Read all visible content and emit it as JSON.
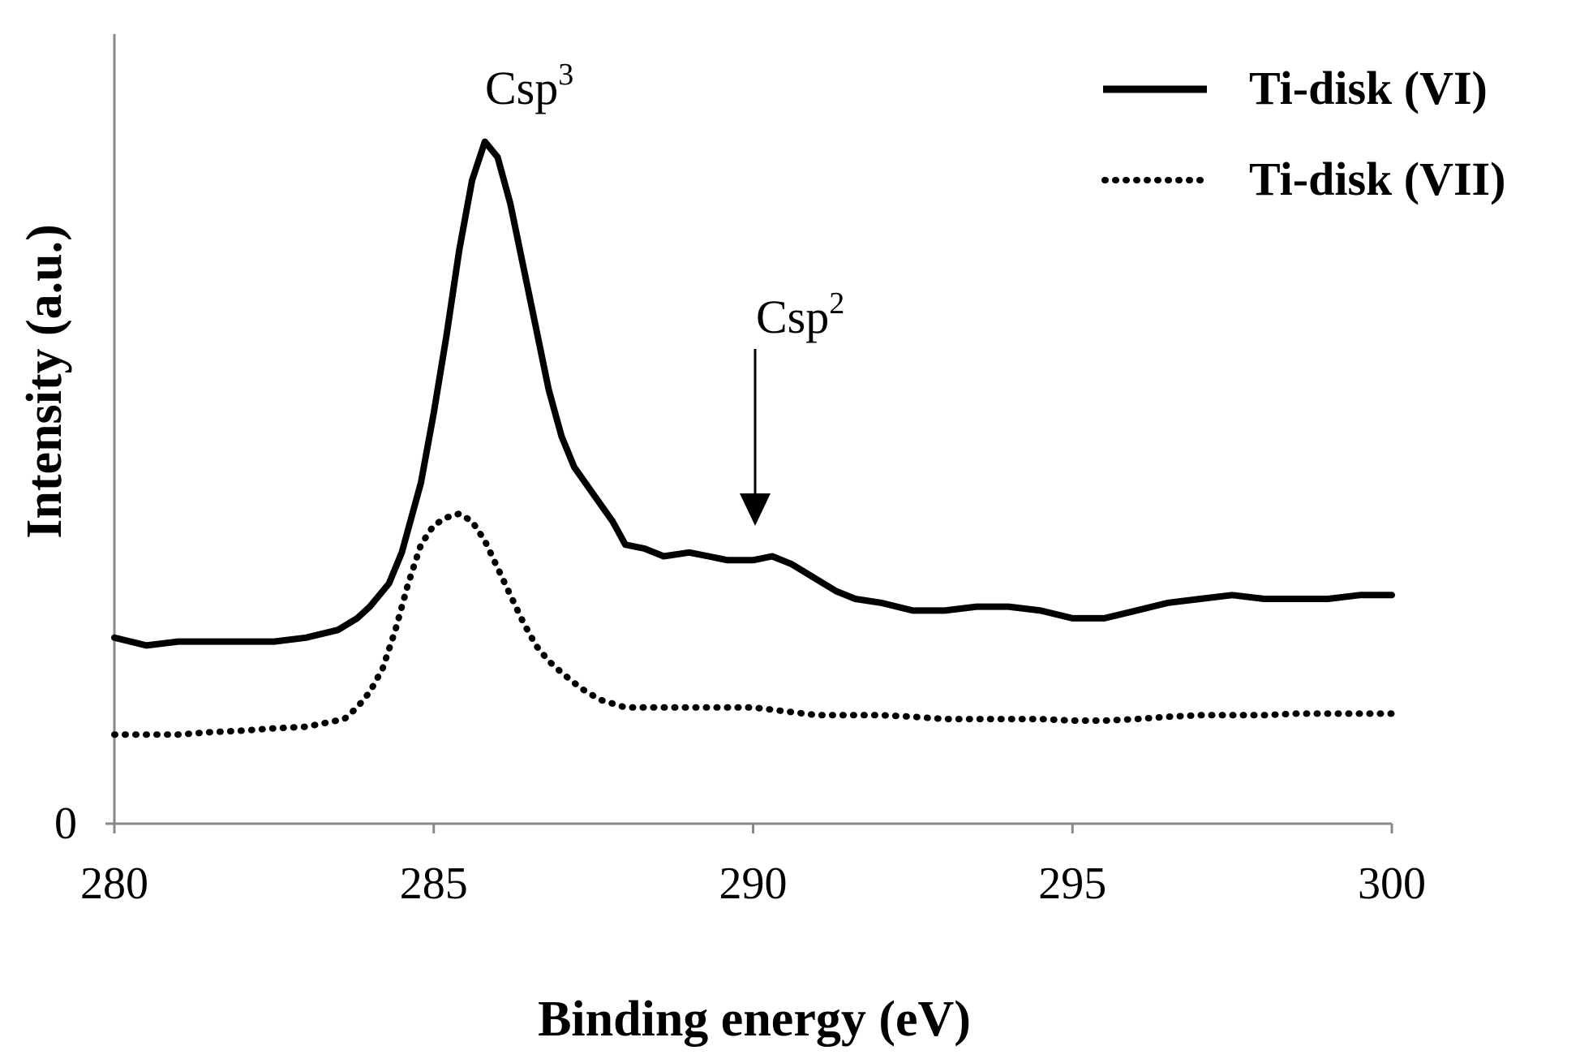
{
  "chart_data": {
    "type": "line",
    "title": "",
    "xlabel": "Binding energy (eV)",
    "ylabel": "Intensity (a.u.)",
    "xlim": [
      280,
      300
    ],
    "ylim": [
      0,
      100
    ],
    "x_ticks": [
      "280",
      "285",
      "290",
      "295",
      "300"
    ],
    "x_tick_values": [
      280,
      285,
      290,
      295,
      300
    ],
    "y_ticks": [
      "0"
    ],
    "y_tick_values": [
      0
    ],
    "grid": false,
    "legend_position": "top-right",
    "series": [
      {
        "name": "Ti-disk (VI)",
        "style": "solid",
        "color": "#000000",
        "x": [
          280,
          280.5,
          281,
          281.5,
          282,
          282.5,
          283,
          283.5,
          283.8,
          284,
          284.3,
          284.5,
          284.8,
          285,
          285.2,
          285.4,
          285.6,
          285.8,
          286,
          286.2,
          286.4,
          286.6,
          286.8,
          287,
          287.2,
          287.5,
          287.8,
          288,
          288.3,
          288.6,
          289,
          289.3,
          289.6,
          290,
          290.3,
          290.6,
          290.8,
          291,
          291.3,
          291.6,
          292,
          292.5,
          293,
          293.5,
          294,
          294.5,
          295,
          295.5,
          296,
          296.5,
          297,
          297.5,
          298,
          298.5,
          299,
          299.5,
          300
        ],
        "values": [
          24,
          23,
          23.5,
          23.5,
          23.5,
          23.5,
          24,
          25,
          26.5,
          28,
          31,
          35,
          44,
          53,
          63,
          74,
          83,
          88,
          86,
          80,
          72,
          64,
          56,
          50,
          46,
          42.5,
          39,
          36,
          35.5,
          34.5,
          35,
          34.5,
          34,
          34,
          34.5,
          33.5,
          32.5,
          31.5,
          30,
          29,
          28.5,
          27.5,
          27.5,
          28,
          28,
          27.5,
          26.5,
          26.5,
          27.5,
          28.5,
          29,
          29.5,
          29,
          29,
          29,
          29.5,
          29.5
        ]
      },
      {
        "name": "Ti-disk (VII)",
        "style": "dotted",
        "color": "#000000",
        "x": [
          280,
          280.5,
          281,
          281.5,
          282,
          282.5,
          283,
          283.3,
          283.6,
          283.8,
          284,
          284.2,
          284.4,
          284.6,
          284.8,
          285,
          285.2,
          285.4,
          285.6,
          285.8,
          286,
          286.2,
          286.4,
          286.6,
          286.8,
          287,
          287.3,
          287.6,
          288,
          288.4,
          288.8,
          289.2,
          289.6,
          290,
          290.5,
          291,
          291.5,
          292,
          292.5,
          293,
          293.5,
          294,
          294.5,
          295,
          295.5,
          296,
          296.5,
          297,
          297.5,
          298,
          298.5,
          299,
          299.5,
          300
        ],
        "values": [
          11.5,
          11.5,
          11.5,
          11.8,
          12,
          12.3,
          12.5,
          13,
          13.5,
          15,
          17,
          20,
          25,
          31,
          36,
          38.5,
          39.5,
          40,
          39,
          36.5,
          33,
          29.5,
          26,
          23,
          21,
          19.5,
          17.5,
          16,
          15,
          15,
          15,
          15,
          15,
          15,
          14.5,
          14,
          14,
          14,
          13.8,
          13.5,
          13.5,
          13.5,
          13.5,
          13.3,
          13.3,
          13.5,
          13.8,
          14,
          14,
          14,
          14.2,
          14.2,
          14.2,
          14.2
        ]
      }
    ],
    "annotations": [
      {
        "base": "Csp",
        "sup": "3"
      },
      {
        "base": "Csp",
        "sup": "2"
      }
    ]
  }
}
